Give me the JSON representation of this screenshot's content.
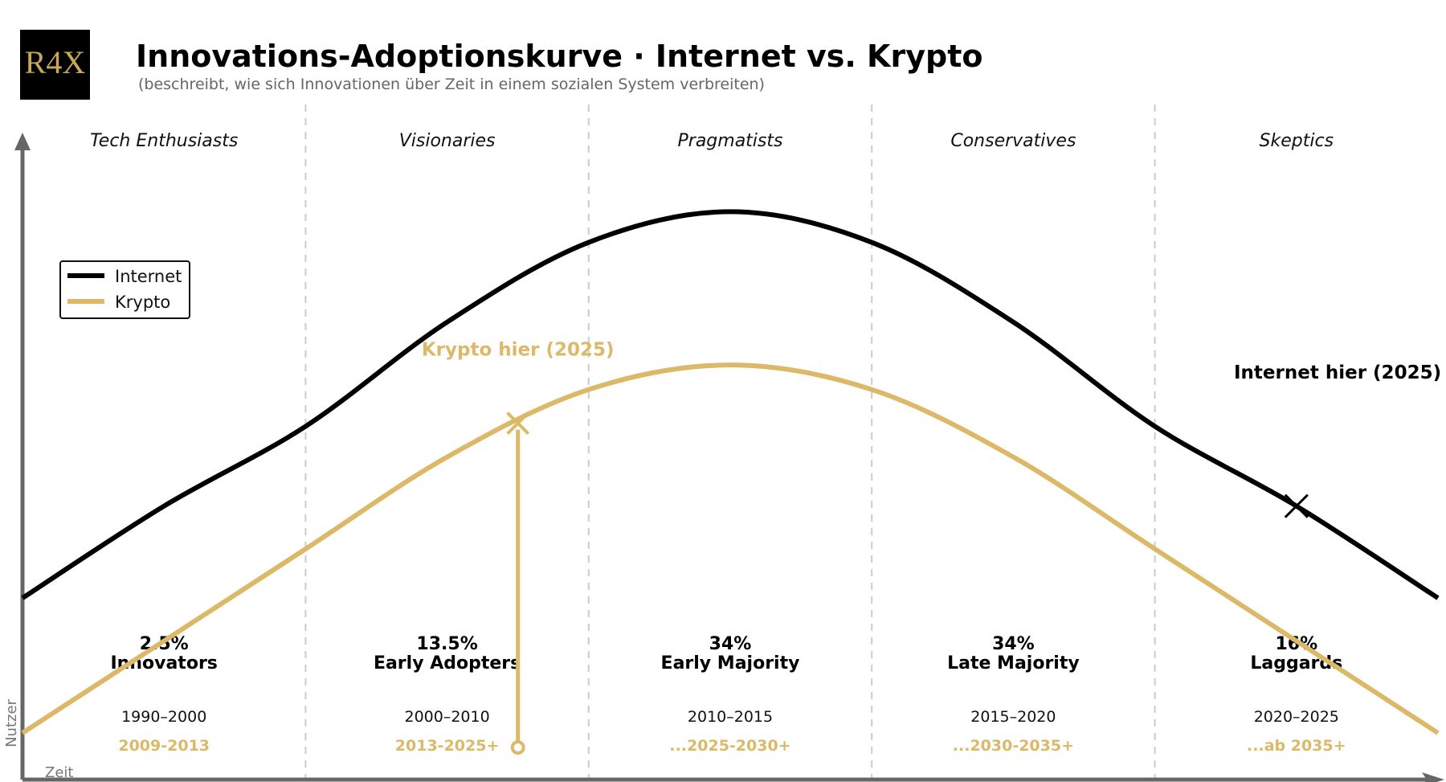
{
  "header": {
    "logo_text": "R4X",
    "title": "Innovations-Adoptionskurve · Internet vs. Krypto",
    "subtitle": "(beschreibt, wie sich Innovationen über Zeit in einem sozialen System verbreiten)"
  },
  "colors": {
    "internet": "#000000",
    "krypto": "#dcb968",
    "axis": "#666666",
    "divider": "#cccccc",
    "logo_bg": "#000000",
    "logo_gold": "#c9a85c"
  },
  "chart_data": {
    "type": "line",
    "xlabel": "Zeit",
    "ylabel": "Nutzer",
    "grid": false,
    "legend_position": "top-left",
    "legend": [
      "Internet",
      "Krypto"
    ],
    "x": [
      0,
      0.5,
      1,
      1.5,
      2,
      2.5,
      3,
      3.5,
      4,
      4.5,
      5
    ],
    "series": [
      {
        "name": "Internet",
        "color": "#000000",
        "values": [
          0.3,
          0.45,
          0.58,
          0.75,
          0.88,
          0.93,
          0.88,
          0.75,
          0.58,
          0.45,
          0.3
        ]
      },
      {
        "name": "Krypto",
        "color": "#dcb968",
        "values": [
          0.08,
          0.23,
          0.38,
          0.53,
          0.64,
          0.68,
          0.64,
          0.53,
          0.38,
          0.23,
          0.08
        ]
      }
    ],
    "segments": [
      {
        "group": "Tech Enthusiasts",
        "percent": "2.5%",
        "name": "Innovators",
        "internet_years": "1990–2000",
        "krypto_years": "2009-2013"
      },
      {
        "group": "Visionaries",
        "percent": "13.5%",
        "name": "Early Adopters",
        "internet_years": "2000–2010",
        "krypto_years": "2013-2025+"
      },
      {
        "group": "Pragmatists",
        "percent": "34%",
        "name": "Early Majority",
        "internet_years": "2010–2015",
        "krypto_years": "...2025-2030+"
      },
      {
        "group": "Conservatives",
        "percent": "34%",
        "name": "Late Majority",
        "internet_years": "2015–2020",
        "krypto_years": "...2030-2035+"
      },
      {
        "group": "Skeptics",
        "percent": "16%",
        "name": "Laggards",
        "internet_years": "2020–2025",
        "krypto_years": "...ab 2035+"
      }
    ],
    "annotations": [
      {
        "text": "Krypto hier (2025)",
        "series": "Krypto",
        "x": 1.75
      },
      {
        "text": "Internet hier (2025)",
        "series": "Internet",
        "x": 4.5
      }
    ]
  }
}
